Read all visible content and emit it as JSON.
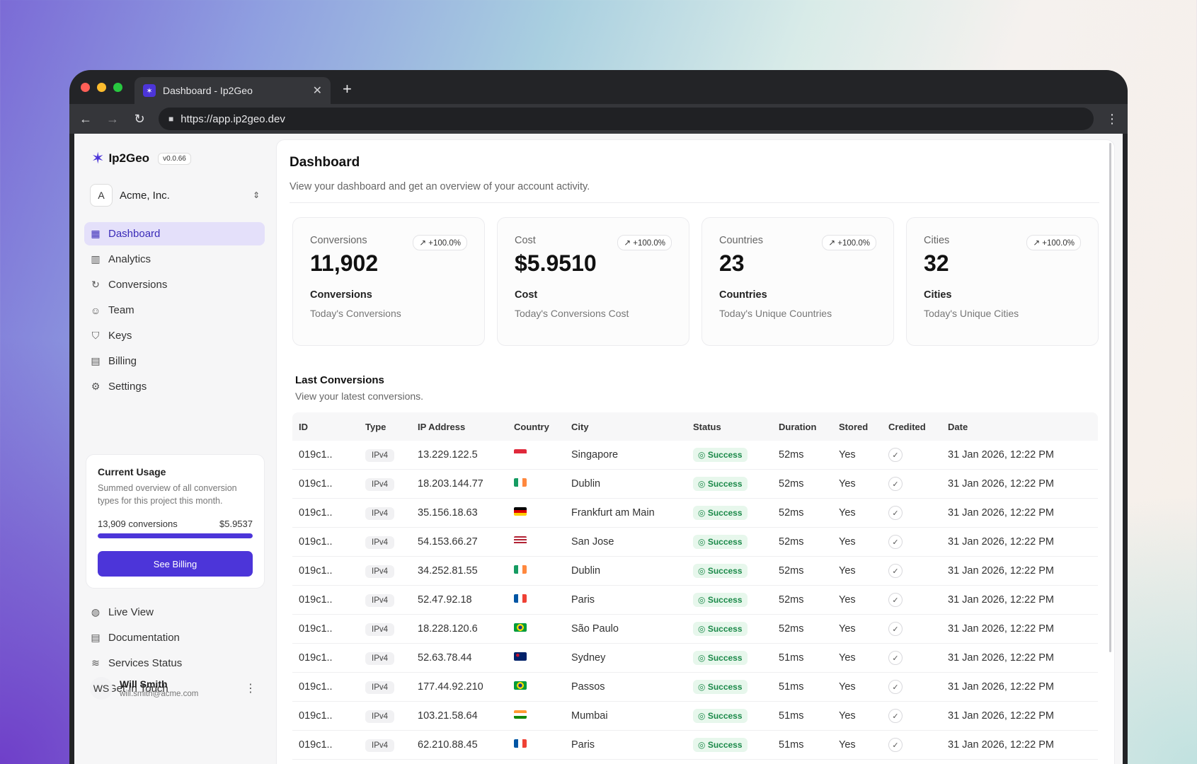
{
  "browser": {
    "tab_title": "Dashboard - Ip2Geo",
    "url": "https://app.ip2geo.dev",
    "close_glyph": "✕",
    "newtab_glyph": "+",
    "back_glyph": "←",
    "forward_glyph": "→",
    "reload_glyph": "↻",
    "menu_glyph": "⋮"
  },
  "brand": {
    "name": "Ip2Geo",
    "version": "v0.0.66",
    "accent": "#4c35d9"
  },
  "org": {
    "avatar": "A",
    "name": "Acme, Inc."
  },
  "sidebar": {
    "items": [
      {
        "label": "Dashboard",
        "icon": "grid-icon",
        "glyph": "▦",
        "active": true
      },
      {
        "label": "Analytics",
        "icon": "chart-icon",
        "glyph": "▥"
      },
      {
        "label": "Conversions",
        "icon": "refresh-icon",
        "glyph": "↻"
      },
      {
        "label": "Team",
        "icon": "users-icon",
        "glyph": "☺"
      },
      {
        "label": "Keys",
        "icon": "shield-icon",
        "glyph": "⛉"
      },
      {
        "label": "Billing",
        "icon": "receipt-icon",
        "glyph": "▤"
      },
      {
        "label": "Settings",
        "icon": "gear-icon",
        "glyph": "⚙"
      }
    ],
    "footer_items": [
      {
        "label": "Live View",
        "icon": "globe-icon",
        "glyph": "◍"
      },
      {
        "label": "Documentation",
        "icon": "book-icon",
        "glyph": "▤"
      },
      {
        "label": "Services Status",
        "icon": "wifi-icon",
        "glyph": "≋"
      },
      {
        "label": "Get In Touch",
        "icon": "headset-icon",
        "glyph": "◠"
      }
    ]
  },
  "usage": {
    "title": "Current Usage",
    "description": "Summed overview of all conversion types for this project this month.",
    "conversions": "13,909 conversions",
    "cost": "$5.9537",
    "fill": 1.0,
    "button": "See Billing"
  },
  "user": {
    "initials": "WS",
    "name": "Will Smith",
    "email": "will.smith@acme.com"
  },
  "page": {
    "title": "Dashboard",
    "subtitle": "View your dashboard and get an overview of your account activity."
  },
  "stats": [
    {
      "label": "Conversions",
      "badge": "↗ +100.0%",
      "value": "11,902",
      "name": "Conversions",
      "desc": "Today's Conversions"
    },
    {
      "label": "Cost",
      "badge": "↗ +100.0%",
      "value": "$5.9510",
      "name": "Cost",
      "desc": "Today's Conversions Cost"
    },
    {
      "label": "Countries",
      "badge": "↗ +100.0%",
      "value": "23",
      "name": "Countries",
      "desc": "Today's Unique Countries"
    },
    {
      "label": "Cities",
      "badge": "↗ +100.0%",
      "value": "32",
      "name": "Cities",
      "desc": "Today's Unique Cities"
    }
  ],
  "table": {
    "title": "Last Conversions",
    "subtitle": "View your latest conversions.",
    "columns": [
      "ID",
      "Type",
      "IP Address",
      "Country",
      "City",
      "Status",
      "Duration",
      "Stored",
      "Credited",
      "Date"
    ],
    "rows": [
      {
        "id": "019c1..",
        "type": "IPv4",
        "ip": "13.229.122.5",
        "flag": "sg",
        "city": "Singapore",
        "status": "Success",
        "duration": "52ms",
        "stored": "Yes",
        "date": "31 Jan 2026, 12:22 PM"
      },
      {
        "id": "019c1..",
        "type": "IPv4",
        "ip": "18.203.144.77",
        "flag": "ie",
        "city": "Dublin",
        "status": "Success",
        "duration": "52ms",
        "stored": "Yes",
        "date": "31 Jan 2026, 12:22 PM"
      },
      {
        "id": "019c1..",
        "type": "IPv4",
        "ip": "35.156.18.63",
        "flag": "de",
        "city": "Frankfurt am Main",
        "status": "Success",
        "duration": "52ms",
        "stored": "Yes",
        "date": "31 Jan 2026, 12:22 PM"
      },
      {
        "id": "019c1..",
        "type": "IPv4",
        "ip": "54.153.66.27",
        "flag": "us",
        "city": "San Jose",
        "status": "Success",
        "duration": "52ms",
        "stored": "Yes",
        "date": "31 Jan 2026, 12:22 PM"
      },
      {
        "id": "019c1..",
        "type": "IPv4",
        "ip": "34.252.81.55",
        "flag": "ie",
        "city": "Dublin",
        "status": "Success",
        "duration": "52ms",
        "stored": "Yes",
        "date": "31 Jan 2026, 12:22 PM"
      },
      {
        "id": "019c1..",
        "type": "IPv4",
        "ip": "52.47.92.18",
        "flag": "fr",
        "city": "Paris",
        "status": "Success",
        "duration": "52ms",
        "stored": "Yes",
        "date": "31 Jan 2026, 12:22 PM"
      },
      {
        "id": "019c1..",
        "type": "IPv4",
        "ip": "18.228.120.6",
        "flag": "br",
        "city": "São Paulo",
        "status": "Success",
        "duration": "52ms",
        "stored": "Yes",
        "date": "31 Jan 2026, 12:22 PM"
      },
      {
        "id": "019c1..",
        "type": "IPv4",
        "ip": "52.63.78.44",
        "flag": "au",
        "city": "Sydney",
        "status": "Success",
        "duration": "51ms",
        "stored": "Yes",
        "date": "31 Jan 2026, 12:22 PM"
      },
      {
        "id": "019c1..",
        "type": "IPv4",
        "ip": "177.44.92.210",
        "flag": "br",
        "city": "Passos",
        "status": "Success",
        "duration": "51ms",
        "stored": "Yes",
        "date": "31 Jan 2026, 12:22 PM"
      },
      {
        "id": "019c1..",
        "type": "IPv4",
        "ip": "103.21.58.64",
        "flag": "in",
        "city": "Mumbai",
        "status": "Success",
        "duration": "51ms",
        "stored": "Yes",
        "date": "31 Jan 2026, 12:22 PM"
      },
      {
        "id": "019c1..",
        "type": "IPv4",
        "ip": "62.210.88.45",
        "flag": "fr",
        "city": "Paris",
        "status": "Success",
        "duration": "51ms",
        "stored": "Yes",
        "date": "31 Jan 2026, 12:22 PM"
      }
    ]
  }
}
